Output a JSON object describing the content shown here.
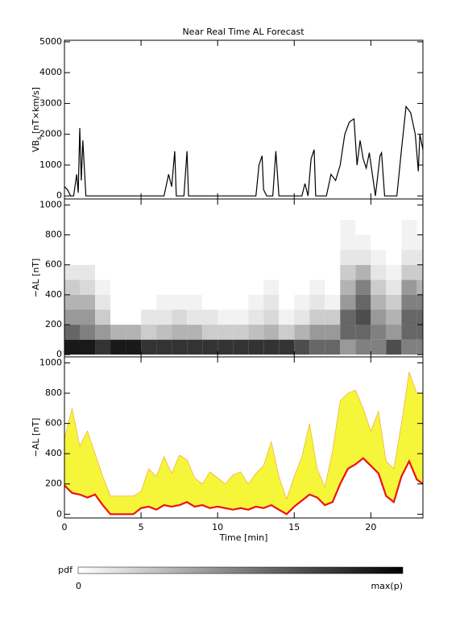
{
  "chart_data": [
    {
      "type": "line",
      "title": "Near Real Time AL Forecast",
      "ylabel": [
        "VB",
        "s",
        " [nT×km/s]"
      ],
      "xlim": [
        0,
        23.4
      ],
      "xticks": [
        0,
        5,
        10,
        15,
        20
      ],
      "ylim": [
        -100,
        5050
      ],
      "yticks": [
        0,
        1000,
        2000,
        3000,
        4000,
        5000
      ],
      "color": "#000000",
      "x": [
        0,
        0.2,
        0.4,
        0.6,
        0.8,
        0.9,
        1.0,
        1.1,
        1.2,
        1.3,
        1.4,
        2,
        4,
        6.5,
        6.8,
        7.0,
        7.2,
        7.3,
        7.8,
        8.0,
        8.1,
        12.5,
        12.7,
        12.9,
        13.0,
        13.2,
        13.6,
        13.8,
        14.0,
        15.5,
        15.7,
        15.9,
        16.1,
        16.3,
        16.4,
        17.1,
        17.4,
        17.7,
        18.0,
        18.3,
        18.6,
        18.9,
        19.1,
        19.3,
        19.5,
        19.7,
        19.9,
        20.1,
        20.3,
        20.6,
        20.7,
        20.9,
        21.7,
        22.0,
        22.3,
        22.6,
        22.9,
        23.1,
        23.2,
        23.4
      ],
      "values": [
        300,
        200,
        0,
        0,
        700,
        100,
        2200,
        500,
        1800,
        900,
        0,
        0,
        0,
        0,
        700,
        300,
        1450,
        0,
        0,
        1450,
        0,
        0,
        1000,
        1300,
        200,
        0,
        0,
        1450,
        0,
        0,
        400,
        0,
        1200,
        1500,
        0,
        0,
        700,
        500,
        1000,
        2000,
        2400,
        2500,
        1000,
        1800,
        1200,
        900,
        1400,
        700,
        0,
        1300,
        1400,
        0,
        0,
        1500,
        2900,
        2700,
        2000,
        800,
        2000,
        1500
      ]
    },
    {
      "type": "heatmap",
      "ylabel": "−AL [nT]",
      "xlim": [
        0,
        23.4
      ],
      "xticks": [
        0,
        5,
        10,
        15,
        20
      ],
      "ylim": [
        -15,
        1040
      ],
      "yticks": [
        0,
        200,
        400,
        600,
        800,
        1000
      ],
      "x_bins": [
        0,
        1,
        2,
        3,
        4,
        5,
        6,
        7,
        8,
        9,
        10,
        11,
        12,
        13,
        14,
        15,
        16,
        17,
        18,
        19,
        20,
        21,
        22,
        23,
        24
      ],
      "y_bins": [
        0,
        100,
        200,
        300,
        400,
        500,
        600,
        700,
        800,
        900,
        1000
      ],
      "z": [
        [
          0.9,
          0.6,
          0.4,
          0.3,
          0.2,
          0.1,
          0,
          0,
          0,
          0
        ],
        [
          0.9,
          0.5,
          0.4,
          0.3,
          0.15,
          0.1,
          0,
          0,
          0,
          0
        ],
        [
          0.8,
          0.4,
          0.2,
          0.1,
          0.05,
          0,
          0,
          0,
          0,
          0
        ],
        [
          0.9,
          0.3,
          0,
          0,
          0,
          0,
          0,
          0,
          0,
          0
        ],
        [
          0.9,
          0.3,
          0,
          0,
          0,
          0,
          0,
          0,
          0,
          0
        ],
        [
          0.8,
          0.2,
          0.1,
          0,
          0,
          0,
          0,
          0,
          0,
          0
        ],
        [
          0.8,
          0.25,
          0.1,
          0.05,
          0,
          0,
          0,
          0,
          0,
          0
        ],
        [
          0.8,
          0.3,
          0.15,
          0.05,
          0,
          0,
          0,
          0,
          0,
          0
        ],
        [
          0.8,
          0.3,
          0.1,
          0.05,
          0,
          0,
          0,
          0,
          0,
          0
        ],
        [
          0.8,
          0.2,
          0.1,
          0,
          0,
          0,
          0,
          0,
          0,
          0
        ],
        [
          0.8,
          0.2,
          0.05,
          0,
          0,
          0,
          0,
          0,
          0,
          0
        ],
        [
          0.8,
          0.2,
          0.05,
          0,
          0,
          0,
          0,
          0,
          0,
          0
        ],
        [
          0.8,
          0.25,
          0.1,
          0.05,
          0,
          0,
          0,
          0,
          0,
          0
        ],
        [
          0.8,
          0.3,
          0.15,
          0.1,
          0.05,
          0,
          0,
          0,
          0,
          0
        ],
        [
          0.8,
          0.2,
          0.05,
          0,
          0,
          0,
          0,
          0,
          0,
          0
        ],
        [
          0.7,
          0.3,
          0.1,
          0.05,
          0,
          0,
          0,
          0,
          0,
          0
        ],
        [
          0.6,
          0.4,
          0.2,
          0.1,
          0.05,
          0,
          0,
          0,
          0,
          0
        ],
        [
          0.6,
          0.4,
          0.2,
          0.05,
          0,
          0,
          0,
          0,
          0,
          0
        ],
        [
          0.4,
          0.6,
          0.6,
          0.4,
          0.3,
          0.2,
          0.1,
          0.05,
          0.05,
          0
        ],
        [
          0.5,
          0.6,
          0.7,
          0.6,
          0.5,
          0.3,
          0.1,
          0.05,
          0,
          0
        ],
        [
          0.5,
          0.5,
          0.4,
          0.3,
          0.2,
          0.1,
          0.05,
          0,
          0,
          0
        ],
        [
          0.7,
          0.4,
          0.3,
          0.2,
          0.1,
          0.05,
          0,
          0,
          0,
          0
        ],
        [
          0.5,
          0.6,
          0.6,
          0.5,
          0.4,
          0.2,
          0.1,
          0.05,
          0.05,
          0
        ],
        [
          0.5,
          0.6,
          0.6,
          0.5,
          0.3,
          0.2,
          0.1,
          0.05,
          0,
          0
        ]
      ],
      "colorbar_label": "pdf",
      "colorbar_ticks": [
        "0",
        "max(p)"
      ]
    },
    {
      "type": "band",
      "ylabel": "−AL [nT]",
      "xlabel": "Time [min]",
      "xlim": [
        0,
        23.4
      ],
      "xticks": [
        0,
        5,
        10,
        15,
        20
      ],
      "ylim": [
        -25,
        1040
      ],
      "yticks": [
        0,
        200,
        400,
        600,
        800,
        1000
      ],
      "x": [
        0,
        0.5,
        1,
        1.5,
        2,
        2.5,
        3,
        3.5,
        4,
        4.5,
        5,
        5.5,
        6,
        6.5,
        7,
        7.5,
        8,
        8.5,
        9,
        9.5,
        10,
        10.5,
        11,
        11.5,
        12,
        12.5,
        13,
        13.5,
        14,
        14.5,
        15,
        15.5,
        16,
        16.5,
        17,
        17.5,
        18,
        18.5,
        19,
        19.5,
        20,
        20.5,
        21,
        21.5,
        22,
        22.5,
        23,
        23.4
      ],
      "series": [
        {
          "color": "#f5f53a",
          "values": [
            500,
            700,
            450,
            550,
            400,
            250,
            120,
            120,
            120,
            120,
            150,
            300,
            250,
            380,
            270,
            390,
            360,
            240,
            200,
            280,
            240,
            200,
            260,
            280,
            200,
            270,
            320,
            480,
            250,
            100,
            250,
            380,
            600,
            300,
            180,
            420,
            750,
            800,
            820,
            700,
            550,
            680,
            350,
            300,
            600,
            940,
            800,
            800
          ]
        },
        {
          "color": "#ee1111",
          "values": [
            190,
            140,
            130,
            110,
            130,
            60,
            0,
            0,
            0,
            0,
            40,
            50,
            30,
            60,
            50,
            60,
            80,
            50,
            60,
            40,
            50,
            40,
            30,
            40,
            30,
            50,
            40,
            60,
            30,
            0,
            50,
            90,
            130,
            110,
            60,
            80,
            200,
            300,
            330,
            370,
            320,
            270,
            120,
            80,
            250,
            350,
            230,
            200
          ]
        }
      ]
    }
  ]
}
